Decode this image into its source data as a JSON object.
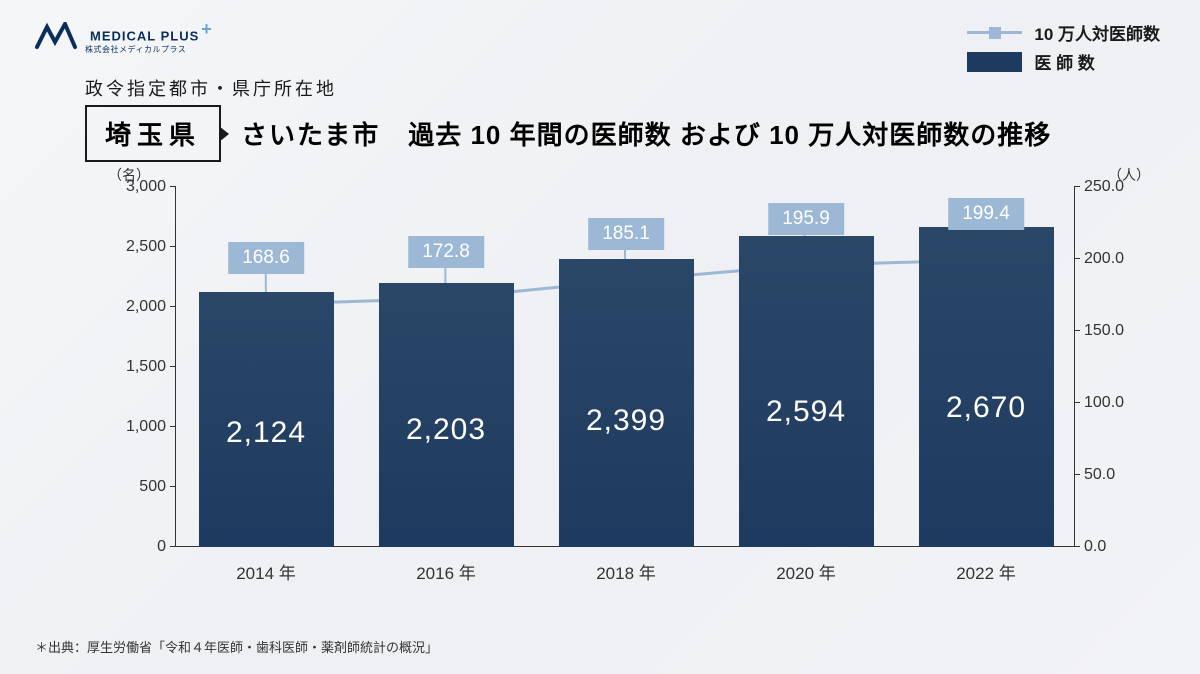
{
  "logo": {
    "brand": "MEDICAL PLUS",
    "sub": "株式会社メディカルプラス"
  },
  "legend": {
    "line_label": "10 万人対医師数",
    "bar_label": "医 師 数"
  },
  "subtitle": "政令指定都市・県庁所在地",
  "prefecture": "埼玉県",
  "city": "さいたま市",
  "main_title": "過去 10 年間の医師数 および 10 万人対医師数の推移",
  "y_left_unit": "（名）",
  "y_right_unit": "（人）",
  "chart": {
    "type": "bar+line",
    "background": "transparent",
    "bar_color": "#1e3a5f",
    "line_color": "#9db8d4",
    "marker_color": "#9db8d4",
    "callout_bg": "#9db8d4",
    "callout_text_color": "#ffffff",
    "bar_text_color": "#ffffff",
    "axis_color": "#333333",
    "bar_width_ratio": 0.75,
    "y_left": {
      "min": 0,
      "max": 3000,
      "step": 500,
      "ticks": [
        "0",
        "500",
        "1,000",
        "1,500",
        "2,000",
        "2,500",
        "3,000"
      ]
    },
    "y_right": {
      "min": 0,
      "max": 250,
      "step": 50,
      "ticks": [
        "0.0",
        "50.0",
        "100.0",
        "150.0",
        "200.0",
        "250.0"
      ]
    },
    "categories": [
      "2014 年",
      "2016 年",
      "2018 年",
      "2020 年",
      "2022 年"
    ],
    "bars": [
      2124,
      2203,
      2399,
      2594,
      2670
    ],
    "bar_labels": [
      "2,124",
      "2,203",
      "2,399",
      "2,594",
      "2,670"
    ],
    "line": [
      168.6,
      172.8,
      185.1,
      195.9,
      199.4
    ],
    "line_labels": [
      "168.6",
      "172.8",
      "185.1",
      "195.9",
      "199.4"
    ]
  },
  "source": "＊出典：厚生労働省「令和４年医師・歯科医師・薬剤師統計の概況」"
}
